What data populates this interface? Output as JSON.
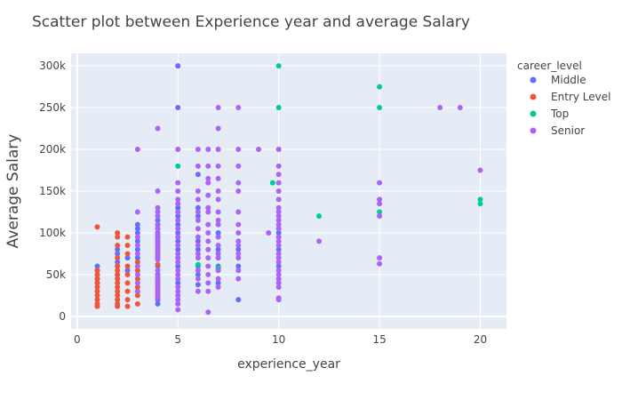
{
  "chart_data": {
    "type": "scatter",
    "title": "Scatter plot between Experience year and average Salary",
    "xlabel": "experience_year",
    "ylabel": "Average Salary",
    "xlim": [
      -0.3,
      21.3
    ],
    "ylim": [
      -15000,
      315000
    ],
    "xticks": [
      0,
      5,
      10,
      15,
      20
    ],
    "xtick_labels": [
      "0",
      "5",
      "10",
      "15",
      "20"
    ],
    "yticks": [
      0,
      50000,
      100000,
      150000,
      200000,
      250000,
      300000
    ],
    "ytick_labels": [
      "0",
      "50k",
      "100k",
      "150k",
      "200k",
      "250k",
      "300k"
    ],
    "grid": true,
    "legend_position": "right",
    "legend_title": "career_level",
    "series": [
      {
        "name": "Middle",
        "color": "#636efa",
        "points": [
          [
            1,
            60000
          ],
          [
            1,
            55000
          ],
          [
            1,
            50000
          ],
          [
            1,
            45000
          ],
          [
            1,
            40000
          ],
          [
            2,
            80000
          ],
          [
            2,
            75000
          ],
          [
            2,
            65000
          ],
          [
            2,
            60000
          ],
          [
            2,
            50000
          ],
          [
            2.5,
            70000
          ],
          [
            2.5,
            55000
          ],
          [
            3,
            110000
          ],
          [
            3,
            105000
          ],
          [
            3,
            100000
          ],
          [
            3,
            90000
          ],
          [
            3,
            80000
          ],
          [
            3,
            70000
          ],
          [
            4,
            115000
          ],
          [
            4,
            110000
          ],
          [
            4,
            105000
          ],
          [
            4,
            100000
          ],
          [
            4,
            95000
          ],
          [
            4,
            90000
          ],
          [
            4,
            85000
          ],
          [
            4,
            80000
          ],
          [
            4,
            70000
          ],
          [
            4,
            60000
          ],
          [
            4,
            50000
          ],
          [
            4,
            40000
          ],
          [
            4,
            30000
          ],
          [
            4,
            20000
          ],
          [
            4,
            15000
          ],
          [
            5,
            300000
          ],
          [
            5,
            250000
          ],
          [
            5,
            130000
          ],
          [
            5,
            120000
          ],
          [
            5,
            110000
          ],
          [
            5,
            100000
          ],
          [
            5,
            90000
          ],
          [
            5,
            80000
          ],
          [
            5,
            60000
          ],
          [
            5,
            40000
          ],
          [
            6,
            170000
          ],
          [
            6,
            130000
          ],
          [
            6,
            120000
          ],
          [
            6,
            90000
          ],
          [
            6,
            80000
          ],
          [
            6,
            60000
          ],
          [
            6,
            50000
          ],
          [
            6,
            38000
          ],
          [
            7,
            100000
          ],
          [
            7,
            80000
          ],
          [
            7,
            60000
          ],
          [
            7,
            40000
          ],
          [
            8,
            80000
          ],
          [
            8,
            60000
          ],
          [
            8,
            20000
          ],
          [
            10,
            100000
          ],
          [
            10,
            80000
          ],
          [
            10,
            60000
          ]
        ]
      },
      {
        "name": "Entry Level",
        "color": "#ef553b",
        "points": [
          [
            1,
            107000
          ],
          [
            1,
            55000
          ],
          [
            1,
            50000
          ],
          [
            1,
            45000
          ],
          [
            1,
            40000
          ],
          [
            1,
            35000
          ],
          [
            1,
            30000
          ],
          [
            1,
            25000
          ],
          [
            1,
            20000
          ],
          [
            1,
            15000
          ],
          [
            1,
            12000
          ],
          [
            2,
            100000
          ],
          [
            2,
            95000
          ],
          [
            2,
            85000
          ],
          [
            2,
            70000
          ],
          [
            2,
            60000
          ],
          [
            2,
            55000
          ],
          [
            2,
            50000
          ],
          [
            2,
            45000
          ],
          [
            2,
            40000
          ],
          [
            2,
            35000
          ],
          [
            2,
            30000
          ],
          [
            2,
            25000
          ],
          [
            2,
            20000
          ],
          [
            2,
            15000
          ],
          [
            2,
            12000
          ],
          [
            2.5,
            95000
          ],
          [
            2.5,
            85000
          ],
          [
            2.5,
            75000
          ],
          [
            2.5,
            60000
          ],
          [
            2.5,
            50000
          ],
          [
            2.5,
            40000
          ],
          [
            2.5,
            30000
          ],
          [
            2.5,
            20000
          ],
          [
            2.5,
            12000
          ],
          [
            3,
            65000
          ],
          [
            3,
            55000
          ],
          [
            3,
            45000
          ],
          [
            3,
            35000
          ],
          [
            3,
            25000
          ],
          [
            3,
            15000
          ],
          [
            4,
            75000
          ],
          [
            4,
            62000
          ],
          [
            4,
            45000
          ],
          [
            4,
            35000
          ],
          [
            4,
            25000
          ]
        ]
      },
      {
        "name": "Top",
        "color": "#00cc96",
        "points": [
          [
            5,
            180000
          ],
          [
            6,
            62000
          ],
          [
            7,
            58000
          ],
          [
            9.7,
            160000
          ],
          [
            10,
            300000
          ],
          [
            10,
            250000
          ],
          [
            12,
            120000
          ],
          [
            15,
            275000
          ],
          [
            15,
            250000
          ],
          [
            15,
            125000
          ],
          [
            20,
            140000
          ],
          [
            20,
            135000
          ]
        ]
      },
      {
        "name": "Senior",
        "color": "#ab63fa",
        "points": [
          [
            3,
            200000
          ],
          [
            3,
            125000
          ],
          [
            3,
            95000
          ],
          [
            3,
            85000
          ],
          [
            3,
            75000
          ],
          [
            3,
            60000
          ],
          [
            3,
            50000
          ],
          [
            3,
            40000
          ],
          [
            3,
            30000
          ],
          [
            4,
            225000
          ],
          [
            4,
            150000
          ],
          [
            4,
            130000
          ],
          [
            4,
            125000
          ],
          [
            4,
            120000
          ],
          [
            4,
            110000
          ],
          [
            4,
            105000
          ],
          [
            4,
            98000
          ],
          [
            4,
            92000
          ],
          [
            4,
            88000
          ],
          [
            4,
            82000
          ],
          [
            4,
            78000
          ],
          [
            4,
            72000
          ],
          [
            4,
            68000
          ],
          [
            4,
            55000
          ],
          [
            4,
            48000
          ],
          [
            4,
            42000
          ],
          [
            4,
            38000
          ],
          [
            4,
            32000
          ],
          [
            4,
            28000
          ],
          [
            4,
            22000
          ],
          [
            5,
            200000
          ],
          [
            5,
            160000
          ],
          [
            5,
            150000
          ],
          [
            5,
            140000
          ],
          [
            5,
            135000
          ],
          [
            5,
            125000
          ],
          [
            5,
            115000
          ],
          [
            5,
            105000
          ],
          [
            5,
            95000
          ],
          [
            5,
            85000
          ],
          [
            5,
            75000
          ],
          [
            5,
            70000
          ],
          [
            5,
            65000
          ],
          [
            5,
            55000
          ],
          [
            5,
            50000
          ],
          [
            5,
            45000
          ],
          [
            5,
            35000
          ],
          [
            5,
            30000
          ],
          [
            5,
            25000
          ],
          [
            5,
            20000
          ],
          [
            5,
            15000
          ],
          [
            5,
            8000
          ],
          [
            6,
            200000
          ],
          [
            6,
            180000
          ],
          [
            6,
            150000
          ],
          [
            6,
            140000
          ],
          [
            6,
            125000
          ],
          [
            6,
            115000
          ],
          [
            6,
            105000
          ],
          [
            6,
            95000
          ],
          [
            6,
            85000
          ],
          [
            6,
            75000
          ],
          [
            6,
            70000
          ],
          [
            6,
            55000
          ],
          [
            6,
            45000
          ],
          [
            6,
            30000
          ],
          [
            6.5,
            200000
          ],
          [
            6.5,
            180000
          ],
          [
            6.5,
            165000
          ],
          [
            6.5,
            160000
          ],
          [
            6.5,
            145000
          ],
          [
            6.5,
            130000
          ],
          [
            6.5,
            125000
          ],
          [
            6.5,
            110000
          ],
          [
            6.5,
            100000
          ],
          [
            6.5,
            90000
          ],
          [
            6.5,
            80000
          ],
          [
            6.5,
            70000
          ],
          [
            6.5,
            60000
          ],
          [
            6.5,
            50000
          ],
          [
            6.5,
            40000
          ],
          [
            6.5,
            30000
          ],
          [
            6.5,
            5000
          ],
          [
            7,
            250000
          ],
          [
            7,
            225000
          ],
          [
            7,
            200000
          ],
          [
            7,
            180000
          ],
          [
            7,
            165000
          ],
          [
            7,
            150000
          ],
          [
            7,
            140000
          ],
          [
            7,
            125000
          ],
          [
            7,
            115000
          ],
          [
            7,
            110000
          ],
          [
            7,
            95000
          ],
          [
            7,
            85000
          ],
          [
            7,
            75000
          ],
          [
            7,
            70000
          ],
          [
            7,
            55000
          ],
          [
            7,
            45000
          ],
          [
            7,
            35000
          ],
          [
            8,
            250000
          ],
          [
            8,
            200000
          ],
          [
            8,
            180000
          ],
          [
            8,
            160000
          ],
          [
            8,
            150000
          ],
          [
            8,
            125000
          ],
          [
            8,
            110000
          ],
          [
            8,
            100000
          ],
          [
            8,
            90000
          ],
          [
            8,
            85000
          ],
          [
            8,
            75000
          ],
          [
            8,
            70000
          ],
          [
            8,
            55000
          ],
          [
            8,
            45000
          ],
          [
            9,
            200000
          ],
          [
            9.5,
            100000
          ],
          [
            10,
            200000
          ],
          [
            10,
            180000
          ],
          [
            10,
            170000
          ],
          [
            10,
            160000
          ],
          [
            10,
            150000
          ],
          [
            10,
            140000
          ],
          [
            10,
            130000
          ],
          [
            10,
            125000
          ],
          [
            10,
            120000
          ],
          [
            10,
            115000
          ],
          [
            10,
            110000
          ],
          [
            10,
            105000
          ],
          [
            10,
            95000
          ],
          [
            10,
            90000
          ],
          [
            10,
            85000
          ],
          [
            10,
            75000
          ],
          [
            10,
            70000
          ],
          [
            10,
            65000
          ],
          [
            10,
            55000
          ],
          [
            10,
            50000
          ],
          [
            10,
            45000
          ],
          [
            10,
            40000
          ],
          [
            10,
            35000
          ],
          [
            10,
            22000
          ],
          [
            10,
            20000
          ],
          [
            12,
            90000
          ],
          [
            15,
            160000
          ],
          [
            15,
            140000
          ],
          [
            15,
            135000
          ],
          [
            15,
            120000
          ],
          [
            15,
            70000
          ],
          [
            15,
            63000
          ],
          [
            18,
            250000
          ],
          [
            19,
            250000
          ],
          [
            20,
            175000
          ]
        ]
      }
    ]
  }
}
